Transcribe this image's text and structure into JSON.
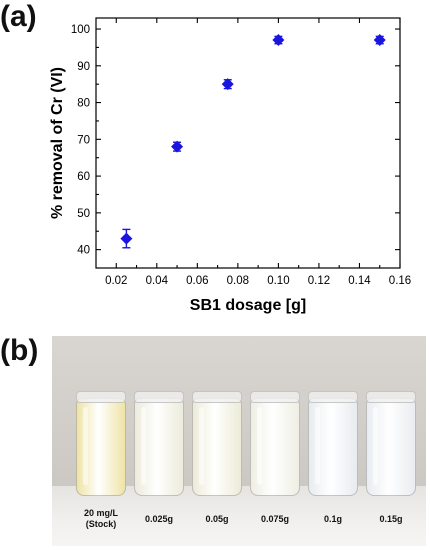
{
  "panel_a_label": "(a)",
  "panel_b_label": "(b)",
  "chart_data": {
    "type": "scatter",
    "xlabel": "SB1 dosage [g]",
    "ylabel": "% removal of Cr (VI)",
    "xlim": [
      0.01,
      0.16
    ],
    "ylim": [
      35,
      103
    ],
    "xticks": [
      "0.02",
      "0.04",
      "0.06",
      "0.08",
      "0.10",
      "0.12",
      "0.14",
      "0.16"
    ],
    "yticks": [
      "40",
      "50",
      "60",
      "70",
      "80",
      "90",
      "100"
    ],
    "grid": false,
    "marker_color": "#1a14e0",
    "points": [
      {
        "x": 0.025,
        "y": 43,
        "err": 2.5
      },
      {
        "x": 0.05,
        "y": 68,
        "err": 1.2
      },
      {
        "x": 0.075,
        "y": 85,
        "err": 1.2
      },
      {
        "x": 0.1,
        "y": 97,
        "err": 1.0
      },
      {
        "x": 0.15,
        "y": 97,
        "err": 1.0
      }
    ]
  },
  "photo": {
    "samples": [
      {
        "label_line1": "20 mg/L",
        "label_line2": "(Stock)",
        "color": "#efe3a6"
      },
      {
        "label_line1": "0.025g",
        "label_line2": "",
        "color": "#ecebdc"
      },
      {
        "label_line1": "0.05g",
        "label_line2": "",
        "color": "#ecebd8"
      },
      {
        "label_line1": "0.075g",
        "label_line2": "",
        "color": "#eeeee4"
      },
      {
        "label_line1": "0.1g",
        "label_line2": "",
        "color": "#e8ecef"
      },
      {
        "label_line1": "0.15g",
        "label_line2": "",
        "color": "#e9ecf0"
      }
    ]
  }
}
